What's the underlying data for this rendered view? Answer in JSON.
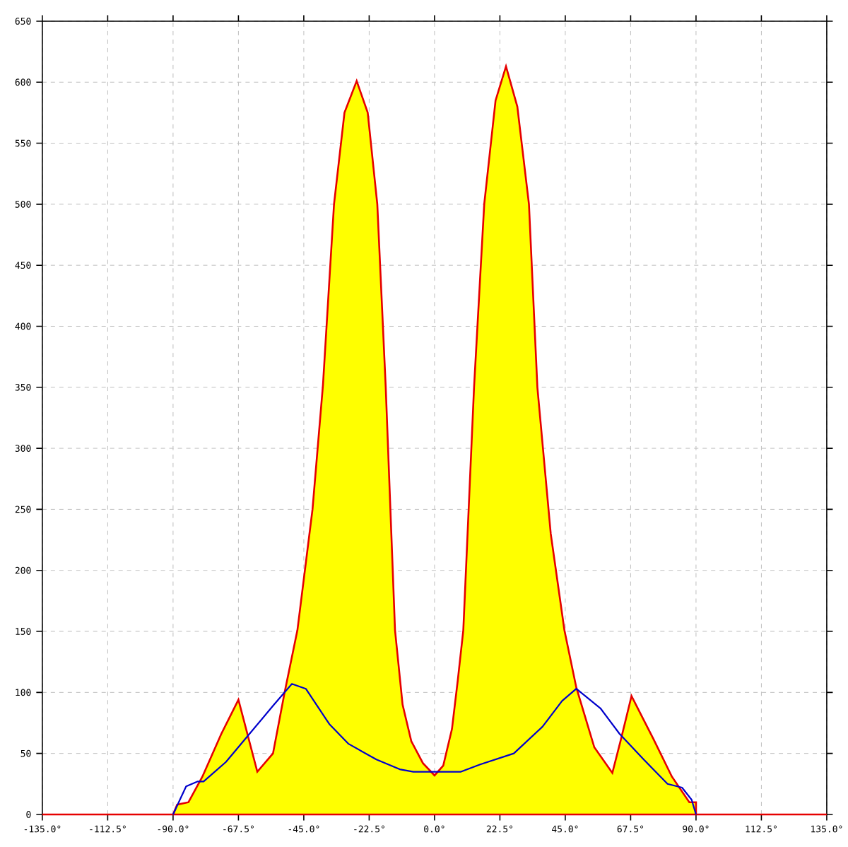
{
  "chart_data": {
    "type": "area",
    "xlim": [
      -135,
      135
    ],
    "ylim": [
      0,
      650
    ],
    "xticks": [
      {
        "value": -135,
        "label": "-135.0°"
      },
      {
        "value": -112.5,
        "label": "-112.5°"
      },
      {
        "value": -90,
        "label": "-90.0°"
      },
      {
        "value": -67.5,
        "label": "-67.5°"
      },
      {
        "value": -45,
        "label": "-45.0°"
      },
      {
        "value": -22.5,
        "label": "-22.5°"
      },
      {
        "value": 0,
        "label": "0.0°"
      },
      {
        "value": 22.5,
        "label": "22.5°"
      },
      {
        "value": 45,
        "label": "45.0°"
      },
      {
        "value": 67.5,
        "label": "67.5°"
      },
      {
        "value": 90,
        "label": "90.0°"
      },
      {
        "value": 112.5,
        "label": "112.5°"
      },
      {
        "value": 135,
        "label": "135.0°"
      }
    ],
    "yticks": [
      0,
      50,
      100,
      150,
      200,
      250,
      300,
      350,
      400,
      450,
      500,
      550,
      600,
      650
    ],
    "grid": true,
    "marker": "none",
    "series": [
      {
        "color": "#ffff00",
        "x": [
          -135,
          -90,
          -88.6,
          -84.7,
          -79.9,
          -73.4,
          -67.5,
          -61,
          -55.6,
          -51.6,
          -47.2,
          -42,
          -38.4,
          -34.6,
          -31,
          -26.8,
          -23,
          -19.7,
          -16.8,
          -13.6,
          -11,
          -8,
          -4,
          0,
          3,
          6,
          8,
          9.9,
          13.6,
          17.1,
          21,
          24.6,
          28.5,
          32.5,
          35.4,
          40,
          44.7,
          48.8,
          55,
          61.2,
          64,
          67.8,
          75.3,
          81.7,
          87.7,
          90,
          90,
          135
        ],
        "values": [
          0,
          0,
          8,
          10,
          31,
          66,
          94,
          35,
          50,
          100,
          151,
          250,
          352,
          500,
          575,
          601,
          575,
          500,
          350,
          151,
          90,
          60,
          42,
          32,
          40,
          70,
          110,
          151,
          350,
          500,
          585,
          613,
          580,
          500,
          350,
          230,
          151,
          104,
          55,
          34,
          60,
          97,
          62,
          31,
          10,
          10,
          0,
          0
        ]
      },
      {
        "type": "line",
        "color": "#0000cc",
        "x": [
          -90,
          -85.5,
          -81.5,
          -79.5,
          -71.8,
          -63.7,
          -55.6,
          -49.1,
          -44.3,
          -36.2,
          -29.7,
          -20,
          -12,
          -7.3,
          0,
          9.1,
          15.7,
          27.3,
          37.2,
          43.9,
          48.8,
          57.1,
          63.7,
          72,
          80.2,
          85.2,
          88.5,
          90
        ],
        "values": [
          0,
          23,
          27,
          27,
          43,
          66,
          89,
          107,
          103,
          74,
          58,
          45,
          37,
          35,
          35,
          35,
          41,
          50,
          72,
          93,
          103,
          87,
          66,
          45,
          25,
          22,
          12,
          0
        ]
      }
    ]
  }
}
